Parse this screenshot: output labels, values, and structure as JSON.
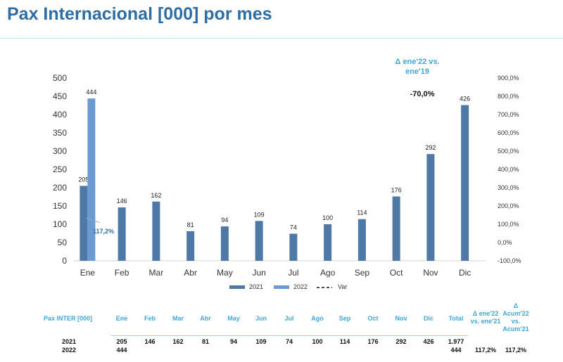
{
  "page": {
    "title": "Pax Internacional [000] por mes"
  },
  "chart_data": {
    "type": "bar",
    "categories": [
      "Ene",
      "Feb",
      "Mar",
      "Abr",
      "May",
      "Jun",
      "Jul",
      "Ago",
      "Sep",
      "Oct",
      "Nov",
      "Dic"
    ],
    "series": [
      {
        "name": "2021",
        "color": "#4e79a7",
        "values": [
          205,
          146,
          162,
          81,
          94,
          109,
          74,
          100,
          114,
          176,
          292,
          426
        ]
      },
      {
        "name": "2022",
        "color": "#6b9bd2",
        "values": [
          444,
          null,
          null,
          null,
          null,
          null,
          null,
          null,
          null,
          null,
          null,
          null
        ]
      }
    ],
    "var_series": {
      "name": "Var",
      "style": "dashed",
      "values": [
        117.2
      ],
      "label": "117,2%"
    },
    "ylim": [
      0,
      500
    ],
    "y_ticks": [
      "0",
      "50",
      "100",
      "150",
      "200",
      "250",
      "300",
      "350",
      "400",
      "450",
      "500"
    ],
    "y2lim": [
      -100,
      900
    ],
    "y2_ticks": [
      "-100,0%",
      "0,0%",
      "100,0%",
      "200,0%",
      "300,0%",
      "400,0%",
      "500,0%",
      "600,0%",
      "700,0%",
      "800,0%",
      "900,0%"
    ],
    "legend_position": "bottom",
    "grid": false
  },
  "note": {
    "heading": "Δ ene'22 vs. ene'19",
    "value": "-70,0%"
  },
  "table": {
    "label": "Pax INTER [000]",
    "headers": [
      "Ene",
      "Feb",
      "Mar",
      "Abr",
      "May",
      "Jun",
      "Jul",
      "Ago",
      "Sep",
      "Oct",
      "Nov",
      "Dic",
      "Total",
      "Δ ene'22 vs. ene'21",
      "Δ Acum'22 vs. Acum'21"
    ],
    "rows": [
      {
        "year": "2021",
        "cells": [
          "205",
          "146",
          "162",
          "81",
          "94",
          "109",
          "74",
          "100",
          "114",
          "176",
          "292",
          "426",
          "1.977",
          "",
          ""
        ]
      },
      {
        "year": "2022",
        "cells": [
          "444",
          "",
          "",
          "",
          "",
          "",
          "",
          "",
          "",
          "",
          "",
          "",
          "444",
          "117,2%",
          "117,2%"
        ]
      }
    ]
  }
}
